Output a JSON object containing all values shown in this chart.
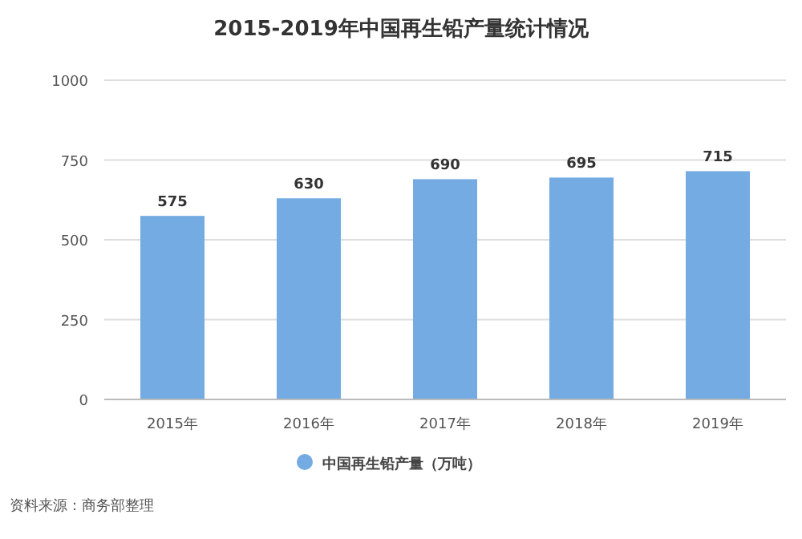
{
  "chart_data": {
    "type": "bar",
    "title": "2015-2019年中国再生铅产量统计情况",
    "categories": [
      "2015年",
      "2016年",
      "2017年",
      "2018年",
      "2019年"
    ],
    "series": [
      {
        "name": "中国再生铅产量（万吨）",
        "color": "#74abe2",
        "values": [
          575,
          630,
          690,
          695,
          715
        ]
      }
    ],
    "ylim": [
      0,
      1000
    ],
    "yticks": [
      0,
      250,
      500,
      750,
      1000
    ],
    "grid": "y",
    "legend": "bottom",
    "data_labels": true,
    "annotations": [
      "资料来源：商务部整理"
    ]
  }
}
